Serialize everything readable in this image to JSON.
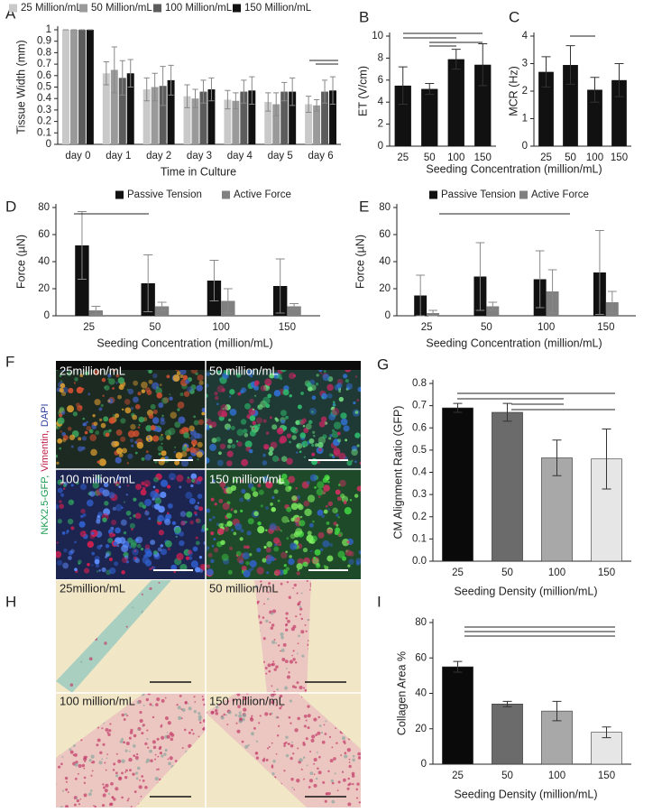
{
  "chart_data": [
    {
      "type": "bar",
      "panel": "A",
      "ylabel": "Tissue Width (mm)",
      "xlabel": "Time in Culture",
      "categories": [
        "day 0",
        "day 1",
        "day 2",
        "day 3",
        "day 4",
        "day 5",
        "day 6"
      ],
      "series": [
        {
          "name": "25 Million/mL",
          "color": "#c9c9c9",
          "values": [
            1,
            0.62,
            0.48,
            0.42,
            0.39,
            0.37,
            0.35
          ],
          "errors": [
            0,
            0.1,
            0.1,
            0.1,
            0.08,
            0.08,
            0.07
          ]
        },
        {
          "name": "50 Million/mL",
          "color": "#9a9a9a",
          "values": [
            1,
            0.65,
            0.5,
            0.4,
            0.38,
            0.35,
            0.34
          ],
          "errors": [
            0,
            0.2,
            0.12,
            0.08,
            0.07,
            0.1,
            0.05
          ]
        },
        {
          "name": "100 Million/mL",
          "color": "#5c5c5c",
          "values": [
            1,
            0.58,
            0.51,
            0.46,
            0.46,
            0.46,
            0.46
          ],
          "errors": [
            0,
            0.15,
            0.17,
            0.1,
            0.1,
            0.08,
            0.1
          ]
        },
        {
          "name": "150 Million/mL",
          "color": "#111111",
          "values": [
            1,
            0.62,
            0.56,
            0.48,
            0.47,
            0.46,
            0.47
          ],
          "errors": [
            0,
            0.12,
            0.13,
            0.1,
            0.12,
            0.12,
            0.12
          ]
        }
      ],
      "ylim": [
        0,
        1
      ],
      "yticks": [
        0,
        0.1,
        0.2,
        0.3,
        0.4,
        0.5,
        0.6,
        0.7,
        0.8,
        0.9,
        1
      ]
    },
    {
      "type": "bar",
      "panel": "B",
      "ylabel": "ET (V/cm)",
      "xlabel": "Seeding Concentration (million/mL)",
      "categories": [
        "25",
        "50",
        "100",
        "150"
      ],
      "values": [
        5.5,
        5.2,
        7.9,
        7.4
      ],
      "errors": [
        1.7,
        0.5,
        0.9,
        1.9
      ],
      "color": "#111111",
      "ylim": [
        0,
        10
      ],
      "yticks": [
        0,
        2,
        4,
        6,
        8,
        10
      ]
    },
    {
      "type": "bar",
      "panel": "C",
      "ylabel": "MCR (Hz)",
      "categories": [
        "25",
        "50",
        "100",
        "150"
      ],
      "values": [
        2.7,
        2.95,
        2.05,
        2.4
      ],
      "errors": [
        0.55,
        0.7,
        0.45,
        0.6
      ],
      "color": "#111111",
      "ylim": [
        0,
        4
      ],
      "yticks": [
        0,
        1,
        2,
        3,
        4
      ]
    },
    {
      "type": "bar",
      "panel": "D",
      "ylabel": "Force (µN)",
      "xlabel": "Seeding Concentration (million/mL)",
      "categories": [
        "25",
        "50",
        "100",
        "150"
      ],
      "series": [
        {
          "name": "Passive Tension",
          "color": "#111111",
          "values": [
            52,
            24,
            26,
            22
          ],
          "errors": [
            25,
            21,
            15,
            20
          ]
        },
        {
          "name": "Active Force",
          "color": "#808080",
          "values": [
            4,
            7,
            11,
            7
          ],
          "errors": [
            3,
            3,
            9,
            2
          ]
        }
      ],
      "ylim": [
        0,
        80
      ],
      "yticks": [
        0,
        20,
        40,
        60,
        80
      ]
    },
    {
      "type": "bar",
      "panel": "E",
      "ylabel": "Force (µN)",
      "xlabel": "Seeding Concentration (million/mL)",
      "categories": [
        "25",
        "50",
        "100",
        "150"
      ],
      "series": [
        {
          "name": "Passive Tension",
          "color": "#111111",
          "values": [
            15,
            29,
            27,
            32
          ],
          "errors": [
            15,
            25,
            21,
            31
          ]
        },
        {
          "name": "Active Force",
          "color": "#808080",
          "values": [
            2,
            7,
            18,
            10
          ],
          "errors": [
            2,
            3,
            16,
            8
          ]
        }
      ],
      "ylim": [
        0,
        80
      ],
      "yticks": [
        0,
        20,
        40,
        60,
        80
      ]
    },
    {
      "type": "bar",
      "panel": "G",
      "ylabel": "CM Alignment Ratio (GFP)",
      "xlabel": "Seeding Density (million/mL)",
      "categories": [
        "25",
        "50",
        "100",
        "150"
      ],
      "values": [
        0.69,
        0.67,
        0.465,
        0.46
      ],
      "errors": [
        0.02,
        0.04,
        0.08,
        0.135
      ],
      "colors": [
        "#0a0a0a",
        "#6b6b6b",
        "#a8a8a8",
        "#e6e6e6"
      ],
      "ylim": [
        0,
        0.8
      ],
      "yticks": [
        {
          "value": 0,
          "label": "0.0"
        },
        0.1,
        0.2,
        0.3,
        0.4,
        0.5,
        0.6,
        0.7,
        0.8
      ]
    },
    {
      "type": "bar",
      "panel": "I",
      "ylabel": "Collagen Area %",
      "xlabel": "Seeding Density (million/mL)",
      "categories": [
        "25",
        "50",
        "100",
        "150"
      ],
      "values": [
        55,
        34,
        30,
        18
      ],
      "errors": [
        3,
        1.5,
        5.5,
        3
      ],
      "colors": [
        "#0a0a0a",
        "#6b6b6b",
        "#a8a8a8",
        "#e6e6e6"
      ],
      "ylim": [
        0,
        80
      ],
      "yticks": [
        0,
        20,
        40,
        60,
        80
      ]
    }
  ],
  "images": [
    {
      "panel": "F",
      "labels": [
        "25million/mL",
        "50 million/mL",
        "100 million/mL",
        "150 million/mL"
      ],
      "stain": [
        "NKX2.5-GFP,",
        "Vimentin,",
        "DAPI"
      ]
    },
    {
      "panel": "H",
      "labels": [
        "25million/mL",
        "50 million/mL",
        "100 million/mL",
        "150 million/mL"
      ]
    }
  ]
}
